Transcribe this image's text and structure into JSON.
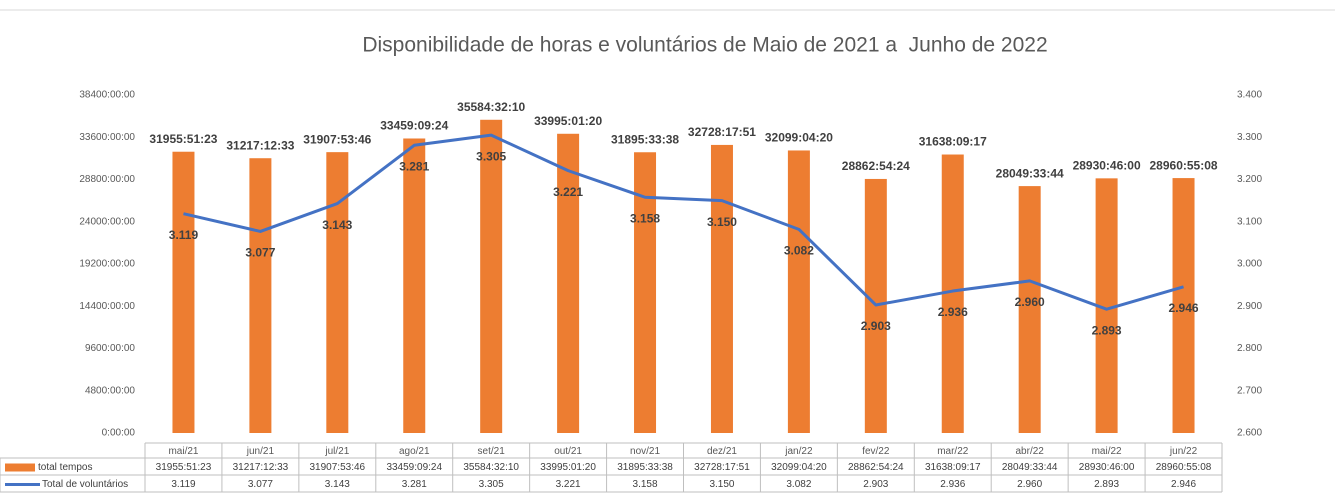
{
  "chart_data": {
    "type": "bar-line",
    "title": "Disponibilidade de horas e voluntários de Maio de 2021 a  Junho de 2022",
    "categories": [
      "mai/21",
      "jun/21",
      "jul/21",
      "ago/21",
      "set/21",
      "out/21",
      "nov/21",
      "dez/21",
      "jan/22",
      "fev/22",
      "mar/22",
      "abr/22",
      "mai/22",
      "jun/22"
    ],
    "series": [
      {
        "name": "total tempos",
        "color": "#ED7D31",
        "type": "bar",
        "values": [
          31955.8564,
          31217.2092,
          31907.8961,
          33459.1567,
          35584.5361,
          33995.0222,
          31895.5606,
          32728.2975,
          32099.0722,
          28862.9067,
          31638.1547,
          28049.5622,
          28930.7667,
          28960.9189
        ],
        "value_labels": [
          "31955:51:23",
          "31217:12:33",
          "31907:53:46",
          "33459:09:24",
          "35584:32:10",
          "33995:01:20",
          "31895:33:38",
          "32728:17:51",
          "32099:04:20",
          "28862:54:24",
          "31638:09:17",
          "28049:33:44",
          "28930:46:00",
          "28960:55:08"
        ]
      },
      {
        "name": "Total de voluntários",
        "color": "#4472C4",
        "type": "line",
        "axis": "y2",
        "values": [
          3.119,
          3.077,
          3.143,
          3.281,
          3.305,
          3.221,
          3.158,
          3.15,
          3.082,
          2.903,
          2.936,
          2.96,
          2.893,
          2.946
        ],
        "value_labels": [
          "3.119",
          "3.077",
          "3.143",
          "3.281",
          "3.305",
          "3.221",
          "3.158",
          "3.150",
          "3.082",
          "2.903",
          "2.936",
          "2.960",
          "2.893",
          "2.946"
        ]
      }
    ],
    "ylim": [
      0,
      38400
    ],
    "yticks": [
      {
        "value": 0,
        "label": "0:00:00"
      },
      {
        "value": 4800,
        "label": "4800:00:00"
      },
      {
        "value": 9600,
        "label": "9600:00:00"
      },
      {
        "value": 14400,
        "label": "14400:00:00"
      },
      {
        "value": 19200,
        "label": "19200:00:00"
      },
      {
        "value": 24000,
        "label": "24000:00:00"
      },
      {
        "value": 28800,
        "label": "28800:00:00"
      },
      {
        "value": 33600,
        "label": "33600:00:00"
      },
      {
        "value": 38400,
        "label": "38400:00:00"
      }
    ],
    "y2lim": [
      2.6,
      3.4
    ],
    "y2ticks": [
      {
        "value": 2.6,
        "label": "2.600"
      },
      {
        "value": 2.7,
        "label": "2.700"
      },
      {
        "value": 2.8,
        "label": "2.800"
      },
      {
        "value": 2.9,
        "label": "2.900"
      },
      {
        "value": 3.0,
        "label": "3.000"
      },
      {
        "value": 3.1,
        "label": "3.100"
      },
      {
        "value": 3.2,
        "label": "3.200"
      },
      {
        "value": 3.3,
        "label": "3.300"
      },
      {
        "value": 3.4,
        "label": "3.400"
      }
    ],
    "data_table": true
  }
}
